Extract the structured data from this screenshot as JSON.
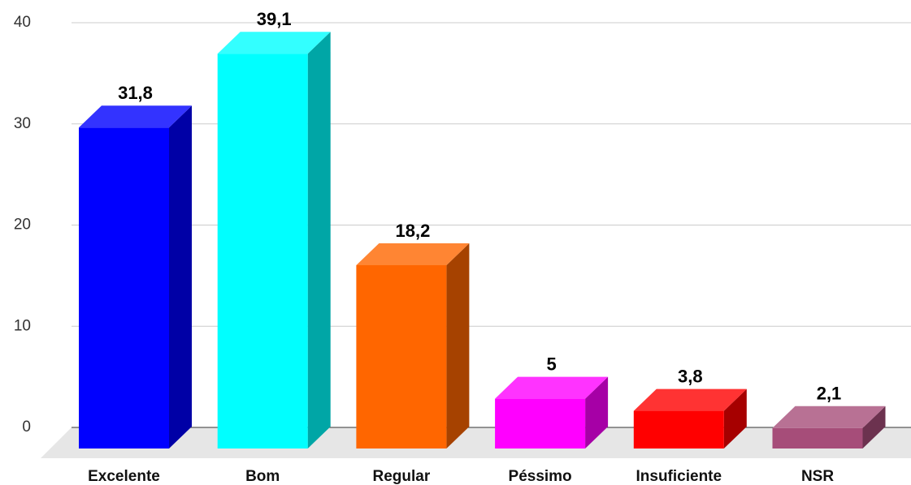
{
  "chart_data": {
    "type": "bar3d",
    "categories": [
      "Excelente",
      "Bom",
      "Regular",
      "Péssimo",
      "Insuficiente",
      "NSR"
    ],
    "values": [
      31.8,
      39.1,
      18.2,
      5,
      3.8,
      2.1
    ],
    "value_labels": [
      "31,8",
      "39,1",
      "18,2",
      "5",
      "3,8",
      "2,1"
    ],
    "colors": [
      "#0000ff",
      "#00ffff",
      "#ff6600",
      "#ff00ff",
      "#ff0000",
      "#a64d79"
    ],
    "ylim": [
      0,
      40
    ],
    "yticks": [
      0,
      10,
      20,
      30,
      40
    ],
    "grid": true
  }
}
